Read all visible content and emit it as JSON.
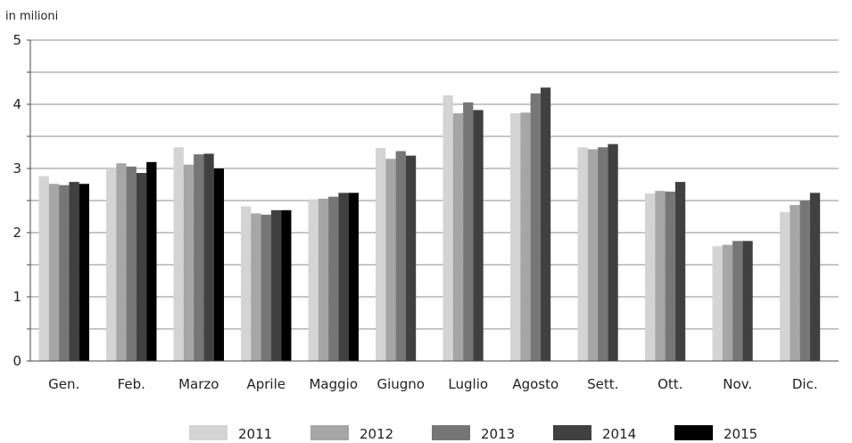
{
  "chart_data": {
    "type": "bar",
    "unit_label": "in milioni",
    "categories": [
      "Gen.",
      "Feb.",
      "Marzo",
      "Aprile",
      "Maggio",
      "Giugno",
      "Luglio",
      "Agosto",
      "Sett.",
      "Ott.",
      "Nov.",
      "Dic."
    ],
    "series": [
      {
        "name": "2011",
        "color": "#d4d4d4",
        "values": [
          2.88,
          3.0,
          3.33,
          2.41,
          2.52,
          3.32,
          4.14,
          3.86,
          3.33,
          2.61,
          1.79,
          2.32
        ]
      },
      {
        "name": "2012",
        "color": "#a6a6a6",
        "values": [
          2.76,
          3.08,
          3.06,
          2.3,
          2.53,
          3.15,
          3.86,
          3.87,
          3.3,
          2.65,
          1.81,
          2.43
        ]
      },
      {
        "name": "2013",
        "color": "#767676",
        "values": [
          2.74,
          3.03,
          3.22,
          2.28,
          2.56,
          3.27,
          4.03,
          4.17,
          3.33,
          2.64,
          1.87,
          2.5
        ]
      },
      {
        "name": "2014",
        "color": "#404040",
        "values": [
          2.79,
          2.93,
          3.23,
          2.35,
          2.62,
          3.2,
          3.91,
          4.26,
          3.38,
          2.79,
          1.87,
          2.62
        ]
      },
      {
        "name": "2015",
        "color": "#000000",
        "values": [
          2.76,
          3.1,
          3.0,
          2.35,
          2.62,
          null,
          null,
          null,
          null,
          null,
          null,
          null
        ]
      }
    ],
    "yticks": [
      0,
      1,
      2,
      3,
      4,
      5
    ],
    "ylim": [
      0,
      5
    ],
    "grid": true,
    "legend": "bottom"
  }
}
